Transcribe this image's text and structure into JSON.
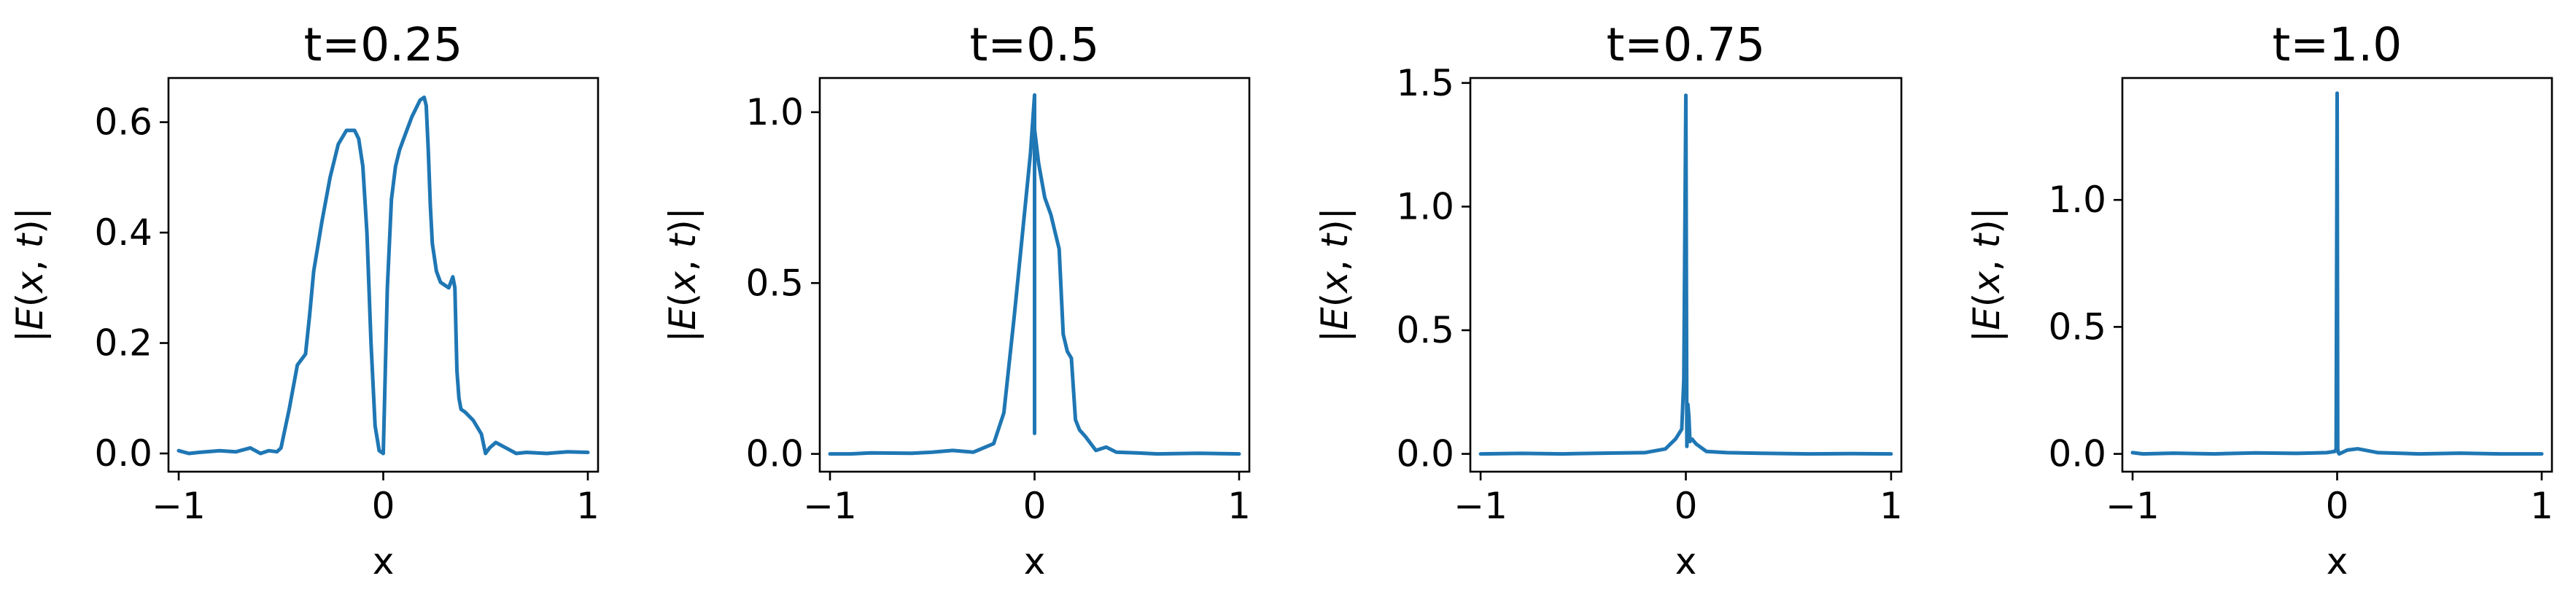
{
  "chart_data": [
    {
      "type": "line",
      "title": "t=0.25",
      "xlabel": "x",
      "ylabel": "|E(x, t)|",
      "xlim": [
        -1.05,
        1.05
      ],
      "ylim": [
        -0.033,
        0.68
      ],
      "xticks": [
        -1,
        0,
        1
      ],
      "xtick_labels": [
        "−1",
        "0",
        "1"
      ],
      "yticks": [
        0.0,
        0.2,
        0.4,
        0.6
      ],
      "ytick_labels": [
        "0.0",
        "0.2",
        "0.4",
        "0.6"
      ],
      "series": [
        {
          "color": "#1f77b4",
          "x": [
            -1.0,
            -0.95,
            -0.9,
            -0.8,
            -0.72,
            -0.65,
            -0.6,
            -0.56,
            -0.52,
            -0.5,
            -0.46,
            -0.42,
            -0.38,
            -0.36,
            -0.34,
            -0.3,
            -0.26,
            -0.22,
            -0.18,
            -0.14,
            -0.12,
            -0.1,
            -0.08,
            -0.06,
            -0.04,
            -0.02,
            0.0,
            0.02,
            0.04,
            0.06,
            0.08,
            0.1,
            0.14,
            0.18,
            0.2,
            0.21,
            0.22,
            0.23,
            0.24,
            0.26,
            0.28,
            0.3,
            0.32,
            0.34,
            0.35,
            0.36,
            0.37,
            0.38,
            0.4,
            0.44,
            0.48,
            0.5,
            0.52,
            0.55,
            0.6,
            0.65,
            0.7,
            0.8,
            0.9,
            1.0
          ],
          "y": [
            0.005,
            0.0,
            0.002,
            0.005,
            0.003,
            0.01,
            0.0,
            0.005,
            0.003,
            0.01,
            0.08,
            0.16,
            0.18,
            0.25,
            0.33,
            0.42,
            0.5,
            0.56,
            0.585,
            0.585,
            0.57,
            0.52,
            0.4,
            0.2,
            0.05,
            0.005,
            0.0,
            0.3,
            0.46,
            0.52,
            0.55,
            0.57,
            0.61,
            0.64,
            0.645,
            0.63,
            0.55,
            0.45,
            0.38,
            0.33,
            0.31,
            0.305,
            0.3,
            0.32,
            0.3,
            0.15,
            0.1,
            0.08,
            0.075,
            0.06,
            0.035,
            0.0,
            0.01,
            0.02,
            0.01,
            0.0,
            0.002,
            0.0,
            0.003,
            0.002
          ]
        }
      ]
    },
    {
      "type": "line",
      "title": "t=0.5",
      "xlabel": "x",
      "ylabel": "|E(x, t)|",
      "xlim": [
        -1.05,
        1.05
      ],
      "ylim": [
        -0.052,
        1.1
      ],
      "xticks": [
        -1,
        0,
        1
      ],
      "xtick_labels": [
        "−1",
        "0",
        "1"
      ],
      "yticks": [
        0.0,
        0.5,
        1.0
      ],
      "ytick_labels": [
        "0.0",
        "0.5",
        "1.0"
      ],
      "series": [
        {
          "color": "#1f77b4",
          "x": [
            -1.0,
            -0.9,
            -0.8,
            -0.6,
            -0.5,
            -0.4,
            -0.3,
            -0.2,
            -0.15,
            -0.1,
            -0.05,
            -0.02,
            0.0,
            0.0,
            0.0,
            0.0,
            0.02,
            0.05,
            0.08,
            0.1,
            0.12,
            0.14,
            0.16,
            0.18,
            0.2,
            0.22,
            0.25,
            0.3,
            0.35,
            0.4,
            0.5,
            0.6,
            0.8,
            1.0
          ],
          "y": [
            0.0,
            0.0,
            0.003,
            0.002,
            0.005,
            0.01,
            0.005,
            0.03,
            0.12,
            0.4,
            0.7,
            0.88,
            1.05,
            0.06,
            1.05,
            0.95,
            0.85,
            0.75,
            0.7,
            0.65,
            0.6,
            0.35,
            0.3,
            0.28,
            0.1,
            0.07,
            0.05,
            0.01,
            0.02,
            0.005,
            0.003,
            0.0,
            0.002,
            0.0
          ]
        }
      ]
    },
    {
      "type": "line",
      "title": "t=0.75",
      "xlabel": "x",
      "ylabel": "|E(x, t)|",
      "xlim": [
        -1.05,
        1.05
      ],
      "ylim": [
        -0.072,
        1.52
      ],
      "xticks": [
        -1,
        0,
        1
      ],
      "xtick_labels": [
        "−1",
        "0",
        "1"
      ],
      "yticks": [
        0.0,
        0.5,
        1.0,
        1.5
      ],
      "ytick_labels": [
        "0.0",
        "0.5",
        "1.0",
        "1.5"
      ],
      "series": [
        {
          "color": "#1f77b4",
          "x": [
            -1.0,
            -0.8,
            -0.6,
            -0.4,
            -0.2,
            -0.1,
            -0.05,
            -0.02,
            -0.01,
            0.0,
            0.005,
            0.01,
            0.015,
            0.02,
            0.03,
            0.05,
            0.1,
            0.2,
            0.4,
            0.6,
            0.8,
            1.0
          ],
          "y": [
            0.0,
            0.002,
            0.0,
            0.003,
            0.005,
            0.02,
            0.06,
            0.1,
            0.3,
            1.45,
            0.03,
            0.2,
            0.15,
            0.05,
            0.06,
            0.04,
            0.01,
            0.005,
            0.002,
            0.0,
            0.001,
            0.0
          ]
        }
      ]
    },
    {
      "type": "line",
      "title": "t=1.0",
      "xlabel": "x",
      "ylabel": "|E(x, t)|",
      "xlim": [
        -1.05,
        1.05
      ],
      "ylim": [
        -0.07,
        1.48
      ],
      "xticks": [
        -1,
        0,
        1
      ],
      "xtick_labels": [
        "−1",
        "0",
        "1"
      ],
      "yticks": [
        0.0,
        0.5,
        1.0
      ],
      "ytick_labels": [
        "0.0",
        "0.5",
        "1.0"
      ],
      "series": [
        {
          "color": "#1f77b4",
          "x": [
            -1.0,
            -0.95,
            -0.8,
            -0.6,
            -0.4,
            -0.2,
            -0.05,
            -0.01,
            -0.005,
            0.0,
            0.003,
            0.006,
            0.01,
            0.05,
            0.1,
            0.2,
            0.4,
            0.6,
            0.8,
            1.0
          ],
          "y": [
            0.005,
            0.0,
            0.003,
            0.0,
            0.004,
            0.002,
            0.005,
            0.01,
            0.02,
            1.42,
            0.02,
            0.005,
            0.0,
            0.015,
            0.02,
            0.005,
            0.0,
            0.003,
            0.0,
            0.0
          ]
        }
      ]
    }
  ]
}
